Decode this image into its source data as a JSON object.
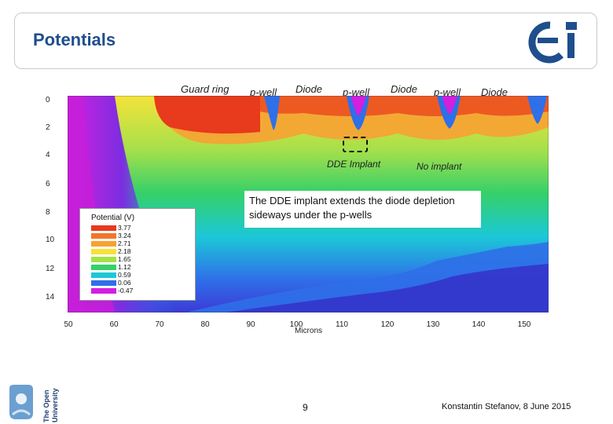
{
  "header": {
    "title": "Potentials"
  },
  "plot": {
    "top_labels": [
      "Guard ring",
      "p-well",
      "Diode",
      "p-well",
      "Diode",
      "p-well",
      "Diode"
    ],
    "y_ticks": [
      "0",
      "2",
      "4",
      "6",
      "8",
      "10",
      "12",
      "14"
    ],
    "x_ticks": [
      "50",
      "60",
      "70",
      "80",
      "90",
      "100",
      "110",
      "120",
      "130",
      "140",
      "150"
    ],
    "x_axis_label": "Microns",
    "annotations": {
      "dde": "DDE Implant",
      "no_implant": "No implant"
    },
    "callout": "The DDE implant extends the diode depletion sideways under the p-wells"
  },
  "legend": {
    "title": "Potential (V)",
    "items": [
      {
        "label": "3.77",
        "color": "#e83a1c"
      },
      {
        "label": "3.24",
        "color": "#f2762a"
      },
      {
        "label": "2.71",
        "color": "#f7a233"
      },
      {
        "label": "2.18",
        "color": "#f4e33a"
      },
      {
        "label": "1.65",
        "color": "#a5e04a"
      },
      {
        "label": "1.12",
        "color": "#35d06a"
      },
      {
        "label": "0.59",
        "color": "#1cc8d8"
      },
      {
        "label": "0.06",
        "color": "#2f6fe8"
      },
      {
        "label": "-0.47",
        "color": "#d21fe0"
      }
    ]
  },
  "footer": {
    "page_number": "9",
    "credit": "Konstantin Stefanov, 8 June 2015"
  }
}
